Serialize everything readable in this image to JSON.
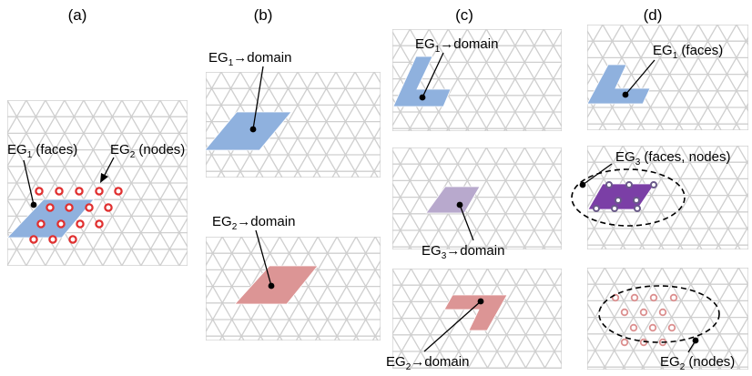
{
  "columns": [
    "(a)",
    "(b)",
    "(c)",
    "(d)"
  ],
  "labels": {
    "a_faces": {
      "pre": "EG",
      "sub": "1",
      "post": " (faces)"
    },
    "a_nodes": {
      "pre": "EG",
      "sub": "2",
      "post": " (nodes)"
    },
    "b_top": {
      "pre": "EG",
      "sub": "1",
      "post": "→domain"
    },
    "b_bottom": {
      "pre": "EG",
      "sub": "2",
      "post": "→domain"
    },
    "c_top": {
      "pre": "EG",
      "sub": "1",
      "post": "→domain"
    },
    "c_mid": {
      "pre": "EG",
      "sub": "3",
      "post": "→domain"
    },
    "c_bottom": {
      "pre": "EG",
      "sub": "2",
      "post": "→domain"
    },
    "d_top": {
      "pre": "EG",
      "sub": "1",
      "post": " (faces)"
    },
    "d_mid": {
      "pre": "EG",
      "sub": "3",
      "post": " (faces, nodes)"
    },
    "d_bottom": {
      "pre": "EG",
      "sub": "2",
      "post": " (nodes)"
    }
  },
  "colors": {
    "grid": "#cfcfcf",
    "eg1_faces": "#8fb1de",
    "eg2_domain": "#dc9595",
    "eg2_nodes_a": "#e03030",
    "eg2_nodes_d": "#dc9090",
    "eg3_domain": "#b8a9cd",
    "eg3_faces": "#7b3fa6",
    "eg3_nodes": "#6a5a8a"
  }
}
